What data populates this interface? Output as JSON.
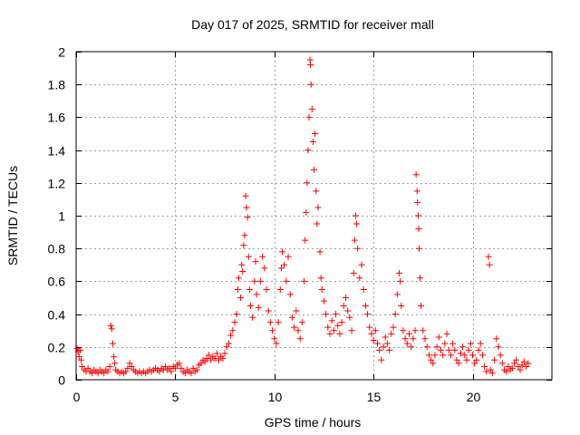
{
  "chart_data": {
    "type": "scatter",
    "title": "Day 017 of 2025, SRMTID for receiver mall",
    "xlabel": "GPS time / hours",
    "ylabel": "SRMTID / TECUs",
    "xlim": [
      0,
      24
    ],
    "ylim": [
      0,
      2
    ],
    "xticks": [
      0,
      5,
      10,
      15,
      20
    ],
    "xtick_labels": [
      "0",
      "5",
      "10",
      "15",
      "20"
    ],
    "yticks": [
      0,
      0.2,
      0.4,
      0.6,
      0.8,
      1.0,
      1.2,
      1.4,
      1.6,
      1.8,
      2.0
    ],
    "ytick_labels": [
      "0",
      "0.2",
      "0.4",
      "0.6",
      "0.8",
      "1",
      "1.2",
      "1.4",
      "1.6",
      "1.8",
      "2"
    ],
    "grid": true,
    "marker": "plus",
    "color": "#ff0000",
    "series": [
      {
        "name": "SRMTID",
        "points": [
          [
            0.05,
            0.19
          ],
          [
            0.1,
            0.17
          ],
          [
            0.15,
            0.14
          ],
          [
            0.2,
            0.18
          ],
          [
            0.25,
            0.12
          ],
          [
            0.3,
            0.08
          ],
          [
            0.4,
            0.06
          ],
          [
            0.5,
            0.05
          ],
          [
            0.6,
            0.07
          ],
          [
            0.7,
            0.05
          ],
          [
            0.8,
            0.04
          ],
          [
            0.9,
            0.06
          ],
          [
            1.0,
            0.05
          ],
          [
            1.1,
            0.04
          ],
          [
            1.2,
            0.06
          ],
          [
            1.3,
            0.05
          ],
          [
            1.4,
            0.04
          ],
          [
            1.5,
            0.06
          ],
          [
            1.6,
            0.05
          ],
          [
            1.7,
            0.08
          ],
          [
            1.75,
            0.33
          ],
          [
            1.8,
            0.31
          ],
          [
            1.85,
            0.22
          ],
          [
            1.9,
            0.14
          ],
          [
            1.95,
            0.1
          ],
          [
            2.0,
            0.06
          ],
          [
            2.1,
            0.05
          ],
          [
            2.2,
            0.04
          ],
          [
            2.3,
            0.05
          ],
          [
            2.4,
            0.04
          ],
          [
            2.5,
            0.05
          ],
          [
            2.6,
            0.07
          ],
          [
            2.7,
            0.1
          ],
          [
            2.8,
            0.08
          ],
          [
            2.9,
            0.06
          ],
          [
            3.0,
            0.05
          ],
          [
            3.1,
            0.04
          ],
          [
            3.2,
            0.05
          ],
          [
            3.3,
            0.04
          ],
          [
            3.4,
            0.05
          ],
          [
            3.5,
            0.04
          ],
          [
            3.6,
            0.05
          ],
          [
            3.7,
            0.06
          ],
          [
            3.8,
            0.05
          ],
          [
            3.9,
            0.06
          ],
          [
            4.0,
            0.07
          ],
          [
            4.1,
            0.06
          ],
          [
            4.2,
            0.05
          ],
          [
            4.3,
            0.07
          ],
          [
            4.4,
            0.06
          ],
          [
            4.5,
            0.08
          ],
          [
            4.6,
            0.06
          ],
          [
            4.7,
            0.07
          ],
          [
            4.8,
            0.05
          ],
          [
            4.9,
            0.08
          ],
          [
            5.0,
            0.07
          ],
          [
            5.1,
            0.09
          ],
          [
            5.2,
            0.1
          ],
          [
            5.3,
            0.07
          ],
          [
            5.4,
            0.05
          ],
          [
            5.5,
            0.04
          ],
          [
            5.6,
            0.06
          ],
          [
            5.7,
            0.05
          ],
          [
            5.8,
            0.04
          ],
          [
            5.9,
            0.07
          ],
          [
            6.0,
            0.05
          ],
          [
            6.1,
            0.06
          ],
          [
            6.2,
            0.09
          ],
          [
            6.3,
            0.1
          ],
          [
            6.4,
            0.12
          ],
          [
            6.5,
            0.11
          ],
          [
            6.6,
            0.13
          ],
          [
            6.7,
            0.15
          ],
          [
            6.8,
            0.12
          ],
          [
            6.9,
            0.14
          ],
          [
            7.0,
            0.13
          ],
          [
            7.1,
            0.16
          ],
          [
            7.2,
            0.12
          ],
          [
            7.3,
            0.14
          ],
          [
            7.4,
            0.13
          ],
          [
            7.5,
            0.16
          ],
          [
            7.6,
            0.2
          ],
          [
            7.7,
            0.22
          ],
          [
            7.8,
            0.27
          ],
          [
            7.9,
            0.3
          ],
          [
            8.0,
            0.35
          ],
          [
            8.1,
            0.4
          ],
          [
            8.15,
            0.55
          ],
          [
            8.2,
            0.62
          ],
          [
            8.3,
            0.5
          ],
          [
            8.35,
            0.7
          ],
          [
            8.4,
            0.66
          ],
          [
            8.45,
            0.82
          ],
          [
            8.5,
            0.88
          ],
          [
            8.55,
            1.12
          ],
          [
            8.6,
            1.05
          ],
          [
            8.65,
            0.99
          ],
          [
            8.7,
            0.75
          ],
          [
            8.75,
            0.55
          ],
          [
            8.8,
            0.45
          ],
          [
            8.9,
            0.38
          ],
          [
            9.0,
            0.6
          ],
          [
            9.05,
            0.72
          ],
          [
            9.1,
            0.52
          ],
          [
            9.2,
            0.44
          ],
          [
            9.3,
            0.6
          ],
          [
            9.4,
            0.75
          ],
          [
            9.5,
            0.68
          ],
          [
            9.6,
            0.55
          ],
          [
            9.7,
            0.42
          ],
          [
            9.8,
            0.35
          ],
          [
            9.9,
            0.3
          ],
          [
            10.0,
            0.25
          ],
          [
            10.1,
            0.22
          ],
          [
            10.2,
            0.35
          ],
          [
            10.3,
            0.55
          ],
          [
            10.35,
            0.68
          ],
          [
            10.4,
            0.78
          ],
          [
            10.5,
            0.7
          ],
          [
            10.6,
            0.6
          ],
          [
            10.7,
            0.75
          ],
          [
            10.8,
            0.52
          ],
          [
            10.9,
            0.38
          ],
          [
            11.0,
            0.32
          ],
          [
            11.1,
            0.42
          ],
          [
            11.2,
            0.3
          ],
          [
            11.3,
            0.25
          ],
          [
            11.4,
            0.35
          ],
          [
            11.5,
            0.6
          ],
          [
            11.55,
            0.85
          ],
          [
            11.6,
            1.02
          ],
          [
            11.65,
            1.2
          ],
          [
            11.7,
            1.4
          ],
          [
            11.75,
            1.6
          ],
          [
            11.8,
            1.95
          ],
          [
            11.82,
            1.92
          ],
          [
            11.85,
            1.8
          ],
          [
            11.9,
            1.65
          ],
          [
            11.95,
            1.45
          ],
          [
            12.0,
            1.28
          ],
          [
            12.05,
            1.5
          ],
          [
            12.1,
            1.15
          ],
          [
            12.15,
            0.95
          ],
          [
            12.2,
            1.05
          ],
          [
            12.3,
            0.78
          ],
          [
            12.35,
            0.62
          ],
          [
            12.4,
            0.55
          ],
          [
            12.5,
            0.48
          ],
          [
            12.6,
            0.4
          ],
          [
            12.7,
            0.32
          ],
          [
            12.8,
            0.28
          ],
          [
            12.9,
            0.36
          ],
          [
            13.0,
            0.3
          ],
          [
            13.1,
            0.4
          ],
          [
            13.2,
            0.33
          ],
          [
            13.3,
            0.28
          ],
          [
            13.4,
            0.35
          ],
          [
            13.5,
            0.45
          ],
          [
            13.6,
            0.5
          ],
          [
            13.7,
            0.42
          ],
          [
            13.8,
            0.38
          ],
          [
            13.9,
            0.3
          ],
          [
            14.0,
            0.65
          ],
          [
            14.05,
            0.85
          ],
          [
            14.1,
            1.0
          ],
          [
            14.15,
            0.95
          ],
          [
            14.2,
            0.8
          ],
          [
            14.3,
            0.62
          ],
          [
            14.4,
            0.7
          ],
          [
            14.5,
            0.55
          ],
          [
            14.6,
            0.45
          ],
          [
            14.7,
            0.4
          ],
          [
            14.8,
            0.32
          ],
          [
            14.9,
            0.28
          ],
          [
            15.0,
            0.24
          ],
          [
            15.1,
            0.3
          ],
          [
            15.2,
            0.22
          ],
          [
            15.3,
            0.18
          ],
          [
            15.4,
            0.12
          ],
          [
            15.5,
            0.2
          ],
          [
            15.6,
            0.26
          ],
          [
            15.7,
            0.22
          ],
          [
            15.8,
            0.18
          ],
          [
            15.9,
            0.28
          ],
          [
            16.0,
            0.32
          ],
          [
            16.1,
            0.4
          ],
          [
            16.2,
            0.52
          ],
          [
            16.3,
            0.65
          ],
          [
            16.35,
            0.6
          ],
          [
            16.4,
            0.45
          ],
          [
            16.5,
            0.3
          ],
          [
            16.6,
            0.25
          ],
          [
            16.7,
            0.22
          ],
          [
            16.8,
            0.28
          ],
          [
            16.9,
            0.2
          ],
          [
            17.0,
            0.25
          ],
          [
            17.1,
            0.3
          ],
          [
            17.15,
            1.25
          ],
          [
            17.2,
            1.15
          ],
          [
            17.22,
            1.08
          ],
          [
            17.25,
            1.0
          ],
          [
            17.28,
            0.92
          ],
          [
            17.3,
            0.8
          ],
          [
            17.35,
            0.62
          ],
          [
            17.4,
            0.45
          ],
          [
            17.5,
            0.3
          ],
          [
            17.6,
            0.25
          ],
          [
            17.7,
            0.2
          ],
          [
            17.8,
            0.15
          ],
          [
            17.9,
            0.12
          ],
          [
            18.0,
            0.1
          ],
          [
            18.1,
            0.15
          ],
          [
            18.2,
            0.2
          ],
          [
            18.3,
            0.26
          ],
          [
            18.4,
            0.18
          ],
          [
            18.5,
            0.15
          ],
          [
            18.6,
            0.22
          ],
          [
            18.7,
            0.28
          ],
          [
            18.8,
            0.18
          ],
          [
            18.9,
            0.15
          ],
          [
            19.0,
            0.22
          ],
          [
            19.1,
            0.18
          ],
          [
            19.2,
            0.12
          ],
          [
            19.3,
            0.1
          ],
          [
            19.4,
            0.16
          ],
          [
            19.5,
            0.2
          ],
          [
            19.6,
            0.15
          ],
          [
            19.7,
            0.12
          ],
          [
            19.8,
            0.18
          ],
          [
            19.9,
            0.22
          ],
          [
            20.0,
            0.15
          ],
          [
            20.1,
            0.1
          ],
          [
            20.2,
            0.12
          ],
          [
            20.3,
            0.18
          ],
          [
            20.4,
            0.22
          ],
          [
            20.5,
            0.15
          ],
          [
            20.6,
            0.08
          ],
          [
            20.7,
            0.05
          ],
          [
            20.8,
            0.75
          ],
          [
            20.85,
            0.7
          ],
          [
            20.9,
            0.06
          ],
          [
            21.0,
            0.04
          ],
          [
            21.1,
            0.12
          ],
          [
            21.2,
            0.25
          ],
          [
            21.3,
            0.2
          ],
          [
            21.4,
            0.15
          ],
          [
            21.5,
            0.1
          ],
          [
            21.6,
            0.06
          ],
          [
            21.7,
            0.05
          ],
          [
            21.8,
            0.08
          ],
          [
            21.9,
            0.06
          ],
          [
            22.0,
            0.07
          ],
          [
            22.1,
            0.1
          ],
          [
            22.2,
            0.12
          ],
          [
            22.3,
            0.08
          ],
          [
            22.4,
            0.06
          ],
          [
            22.5,
            0.09
          ],
          [
            22.6,
            0.11
          ],
          [
            22.7,
            0.08
          ],
          [
            22.8,
            0.1
          ]
        ]
      }
    ]
  }
}
